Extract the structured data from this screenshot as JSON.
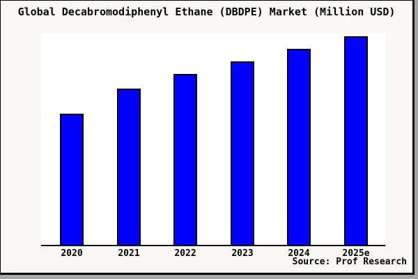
{
  "chart_data": {
    "type": "bar",
    "title": "Global Decabromodiphenyl Ethane (DBDPE) Market (Million USD)",
    "categories": [
      "2020",
      "2021",
      "2022",
      "2023",
      "2024",
      "2025e"
    ],
    "values": [
      63,
      75,
      82,
      88,
      94,
      100
    ],
    "value_note": "No y-axis scale or data labels shown in image; values are relative bar heights with tallest bar (2025e) = 100",
    "xlabel": "",
    "ylabel": "",
    "ylim": [
      0,
      101
    ],
    "grid": false,
    "legend": false,
    "bar_color": "#0000ff",
    "bar_border_color": "#000000",
    "axis_color": "#000000"
  },
  "source": {
    "label": "Source: Prof Research"
  },
  "colors": {
    "panel_background": "#f9f8f5",
    "plot_background": "#ffffff",
    "shadow": "#a6a6a6",
    "text": "#000000"
  }
}
